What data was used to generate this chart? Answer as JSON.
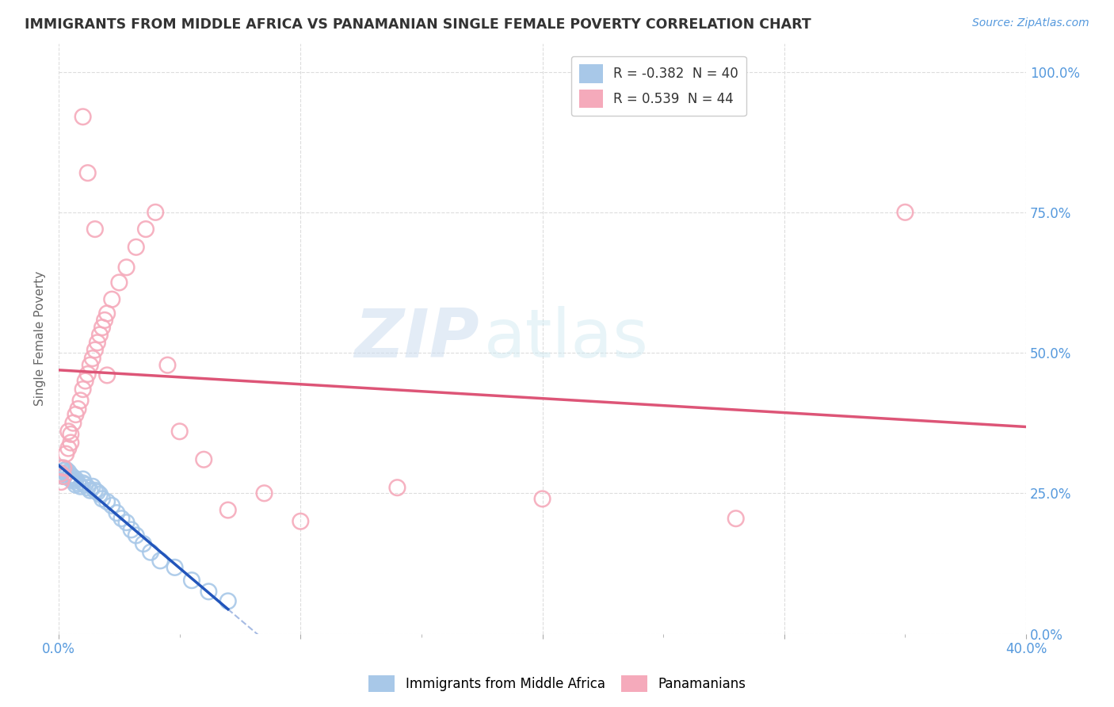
{
  "title": "IMMIGRANTS FROM MIDDLE AFRICA VS PANAMANIAN SINGLE FEMALE POVERTY CORRELATION CHART",
  "source": "Source: ZipAtlas.com",
  "ylabel": "Single Female Poverty",
  "legend_label1": "Immigrants from Middle Africa",
  "legend_label2": "Panamanians",
  "r1": -0.382,
  "n1": 40,
  "r2": 0.539,
  "n2": 44,
  "color1": "#a8c8e8",
  "color2": "#f5aabb",
  "line_color1": "#2255bb",
  "line_color2": "#dd5577",
  "watermark_zip": "ZIP",
  "watermark_atlas": "atlas",
  "xlim": [
    0.0,
    0.4
  ],
  "ylim": [
    0.0,
    1.05
  ],
  "yticks": [
    0.0,
    0.25,
    0.5,
    0.75,
    1.0
  ],
  "bg_color": "#ffffff",
  "grid_color": "#dddddd",
  "axis_color": "#5599dd",
  "title_color": "#333333",
  "blue_x": [
    0.001,
    0.001,
    0.002,
    0.002,
    0.003,
    0.003,
    0.004,
    0.004,
    0.005,
    0.005,
    0.006,
    0.006,
    0.007,
    0.007,
    0.008,
    0.009,
    0.01,
    0.01,
    0.011,
    0.012,
    0.013,
    0.014,
    0.015,
    0.016,
    0.017,
    0.018,
    0.02,
    0.022,
    0.024,
    0.026,
    0.028,
    0.03,
    0.032,
    0.035,
    0.038,
    0.042,
    0.048,
    0.055,
    0.062,
    0.07
  ],
  "blue_y": [
    0.285,
    0.295,
    0.28,
    0.29,
    0.285,
    0.292,
    0.278,
    0.288,
    0.282,
    0.275,
    0.278,
    0.272,
    0.265,
    0.275,
    0.268,
    0.262,
    0.268,
    0.275,
    0.265,
    0.26,
    0.255,
    0.262,
    0.255,
    0.252,
    0.248,
    0.24,
    0.235,
    0.228,
    0.215,
    0.205,
    0.198,
    0.185,
    0.175,
    0.16,
    0.145,
    0.13,
    0.118,
    0.095,
    0.075,
    0.058
  ],
  "pink_x": [
    0.001,
    0.001,
    0.002,
    0.002,
    0.003,
    0.004,
    0.004,
    0.005,
    0.005,
    0.006,
    0.007,
    0.008,
    0.009,
    0.01,
    0.011,
    0.012,
    0.013,
    0.014,
    0.015,
    0.016,
    0.017,
    0.018,
    0.019,
    0.02,
    0.022,
    0.025,
    0.028,
    0.032,
    0.036,
    0.04,
    0.045,
    0.05,
    0.06,
    0.07,
    0.085,
    0.1,
    0.14,
    0.2,
    0.28,
    0.35,
    0.01,
    0.012,
    0.015,
    0.02
  ],
  "pink_y": [
    0.27,
    0.285,
    0.28,
    0.295,
    0.32,
    0.33,
    0.36,
    0.34,
    0.355,
    0.375,
    0.39,
    0.4,
    0.415,
    0.435,
    0.45,
    0.462,
    0.478,
    0.49,
    0.505,
    0.518,
    0.532,
    0.545,
    0.558,
    0.57,
    0.595,
    0.625,
    0.652,
    0.688,
    0.72,
    0.75,
    0.478,
    0.36,
    0.31,
    0.22,
    0.25,
    0.2,
    0.26,
    0.24,
    0.205,
    0.75,
    0.92,
    0.82,
    0.72,
    0.46
  ]
}
